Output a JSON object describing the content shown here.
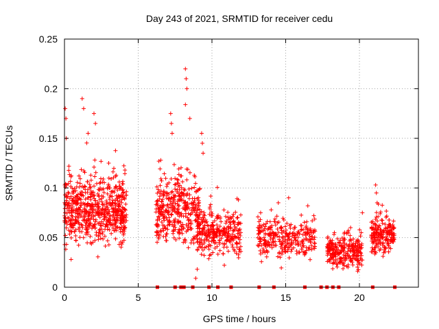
{
  "chart_data": {
    "type": "scatter",
    "title": "Day 243 of 2021, SRMTID for receiver cedu",
    "xlabel": "GPS time / hours",
    "ylabel": "SRMTID / TECUs",
    "xlim": [
      0,
      24
    ],
    "ylim": [
      0,
      0.25
    ],
    "x_ticks": [
      0,
      5,
      10,
      15,
      20
    ],
    "x_tick_labels": [
      "0",
      "5",
      "10",
      "15",
      "20"
    ],
    "y_ticks": [
      0,
      0.05,
      0.1,
      0.15,
      0.2,
      0.25
    ],
    "y_tick_labels": [
      "0",
      "0.05",
      "0.1",
      "0.15",
      "0.2",
      "0.25"
    ],
    "grid": true,
    "marker": "+",
    "series": [
      {
        "name": "SRMTID",
        "color": "#ff0000",
        "clusters": [
          {
            "x0": 0.0,
            "x1": 4.2,
            "center": 0.075,
            "spread": 0.025,
            "n": 650,
            "peaks": [
              [
                0.05,
                0.18
              ],
              [
                0.1,
                0.17
              ],
              [
                0.12,
                0.15
              ],
              [
                1.2,
                0.19
              ],
              [
                1.3,
                0.18
              ],
              [
                2.0,
                0.175
              ],
              [
                2.1,
                0.165
              ],
              [
                1.6,
                0.155
              ],
              [
                4.1,
                0.118
              ],
              [
                3.0,
                0.125
              ],
              [
                0.45,
                0.028
              ]
            ]
          },
          {
            "x0": 6.2,
            "x1": 9.2,
            "center": 0.075,
            "spread": 0.025,
            "n": 380,
            "peaks": [
              [
                8.2,
                0.22
              ],
              [
                8.25,
                0.21
              ],
              [
                8.3,
                0.2
              ],
              [
                8.2,
                0.184
              ],
              [
                7.2,
                0.175
              ],
              [
                7.25,
                0.165
              ],
              [
                7.3,
                0.155
              ],
              [
                8.5,
                0.17
              ],
              [
                6.4,
                0.127
              ]
            ]
          },
          {
            "x0": 9.0,
            "x1": 12.0,
            "center": 0.055,
            "spread": 0.018,
            "n": 300,
            "peaks": [
              [
                9.3,
                0.155
              ],
              [
                9.35,
                0.145
              ],
              [
                9.4,
                0.135
              ],
              [
                8.9,
                0.009
              ],
              [
                9.0,
                0.018
              ]
            ]
          },
          {
            "x0": 13.1,
            "x1": 17.0,
            "center": 0.048,
            "spread": 0.015,
            "n": 300,
            "peaks": [
              [
                15.2,
                0.09
              ],
              [
                14.5,
                0.085
              ],
              [
                13.3,
                0.075
              ],
              [
                16.5,
                0.082
              ]
            ]
          },
          {
            "x0": 17.8,
            "x1": 20.2,
            "center": 0.035,
            "spread": 0.012,
            "n": 260,
            "peaks": [
              [
                19.4,
                0.06
              ],
              [
                18.3,
                0.055
              ]
            ]
          },
          {
            "x0": 20.8,
            "x1": 22.4,
            "center": 0.052,
            "spread": 0.015,
            "n": 200,
            "peaks": [
              [
                21.1,
                0.103
              ],
              [
                21.15,
                0.095
              ],
              [
                21.2,
                0.085
              ],
              [
                20.2,
                0.075
              ]
            ]
          }
        ],
        "baseline_points_x": [
          6.3,
          7.5,
          7.9,
          8.1,
          8.7,
          9.8,
          10.4,
          11.3,
          13.2,
          14.2,
          16.3,
          17.4,
          17.8,
          18.2,
          18.6,
          20.9,
          22.4
        ]
      }
    ]
  }
}
